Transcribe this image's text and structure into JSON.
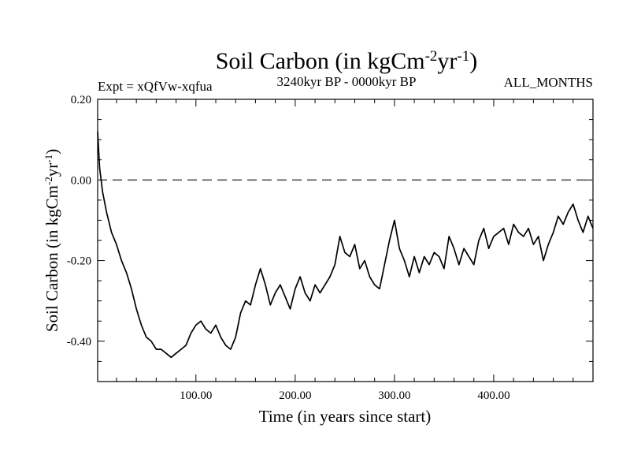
{
  "chart_data": {
    "type": "line",
    "title": "Soil Carbon (in kgCm",
    "title_sup1": "-2",
    "title_mid": "yr",
    "title_sup2": "-1",
    "title_end": ")",
    "subtitle_left": "Expt = xQfVw-xqfua",
    "subtitle_center": "3240kyr BP - 0000kyr BP",
    "subtitle_right": "ALL_MONTHS",
    "xlabel": "Time (in years since start)",
    "ylabel": "Soil Carbon (in kgCm",
    "ylabel_sup1": "-2",
    "ylabel_mid": "yr",
    "ylabel_sup2": "-1",
    "ylabel_end": ")",
    "xlim": [
      1,
      500
    ],
    "ylim": [
      -0.5,
      0.2
    ],
    "x_ticks": [
      100,
      200,
      300,
      400
    ],
    "x_tick_labels": [
      "100.00",
      "200.00",
      "300.00",
      "400.00"
    ],
    "y_ticks": [
      0.2,
      0.0,
      -0.2,
      -0.4
    ],
    "y_tick_labels": [
      "0.20",
      "0.00",
      "-0.20",
      "-0.40"
    ],
    "reference_line": {
      "y": 0.0,
      "style": "dashed",
      "color": "#555555"
    },
    "series": [
      {
        "name": "Soil Carbon",
        "color": "#000000",
        "x": [
          1,
          3,
          6,
          10,
          15,
          20,
          25,
          30,
          35,
          40,
          45,
          50,
          55,
          60,
          65,
          70,
          75,
          80,
          85,
          90,
          95,
          100,
          105,
          110,
          115,
          120,
          125,
          130,
          135,
          140,
          145,
          150,
          155,
          160,
          165,
          170,
          175,
          180,
          185,
          190,
          195,
          200,
          205,
          210,
          215,
          220,
          225,
          230,
          235,
          240,
          245,
          250,
          255,
          260,
          265,
          270,
          275,
          280,
          285,
          290,
          295,
          300,
          305,
          310,
          315,
          320,
          325,
          330,
          335,
          340,
          345,
          350,
          355,
          360,
          365,
          370,
          375,
          380,
          385,
          390,
          395,
          400,
          405,
          410,
          415,
          420,
          425,
          430,
          435,
          440,
          445,
          450,
          455,
          460,
          465,
          470,
          475,
          480,
          485,
          490,
          495,
          500
        ],
        "values": [
          0.12,
          0.03,
          -0.03,
          -0.08,
          -0.13,
          -0.16,
          -0.2,
          -0.23,
          -0.27,
          -0.32,
          -0.36,
          -0.39,
          -0.4,
          -0.42,
          -0.42,
          -0.43,
          -0.44,
          -0.43,
          -0.42,
          -0.41,
          -0.38,
          -0.36,
          -0.35,
          -0.37,
          -0.38,
          -0.36,
          -0.39,
          -0.41,
          -0.42,
          -0.39,
          -0.33,
          -0.3,
          -0.31,
          -0.26,
          -0.22,
          -0.26,
          -0.31,
          -0.28,
          -0.26,
          -0.29,
          -0.32,
          -0.27,
          -0.24,
          -0.28,
          -0.3,
          -0.26,
          -0.28,
          -0.26,
          -0.24,
          -0.21,
          -0.14,
          -0.18,
          -0.19,
          -0.16,
          -0.22,
          -0.2,
          -0.24,
          -0.26,
          -0.27,
          -0.21,
          -0.15,
          -0.1,
          -0.17,
          -0.2,
          -0.24,
          -0.19,
          -0.23,
          -0.19,
          -0.21,
          -0.18,
          -0.19,
          -0.22,
          -0.14,
          -0.17,
          -0.21,
          -0.17,
          -0.19,
          -0.21,
          -0.15,
          -0.12,
          -0.17,
          -0.14,
          -0.13,
          -0.12,
          -0.16,
          -0.11,
          -0.13,
          -0.14,
          -0.12,
          -0.16,
          -0.14,
          -0.2,
          -0.16,
          -0.13,
          -0.09,
          -0.11,
          -0.08,
          -0.06,
          -0.1,
          -0.13,
          -0.09,
          -0.12
        ]
      }
    ]
  }
}
